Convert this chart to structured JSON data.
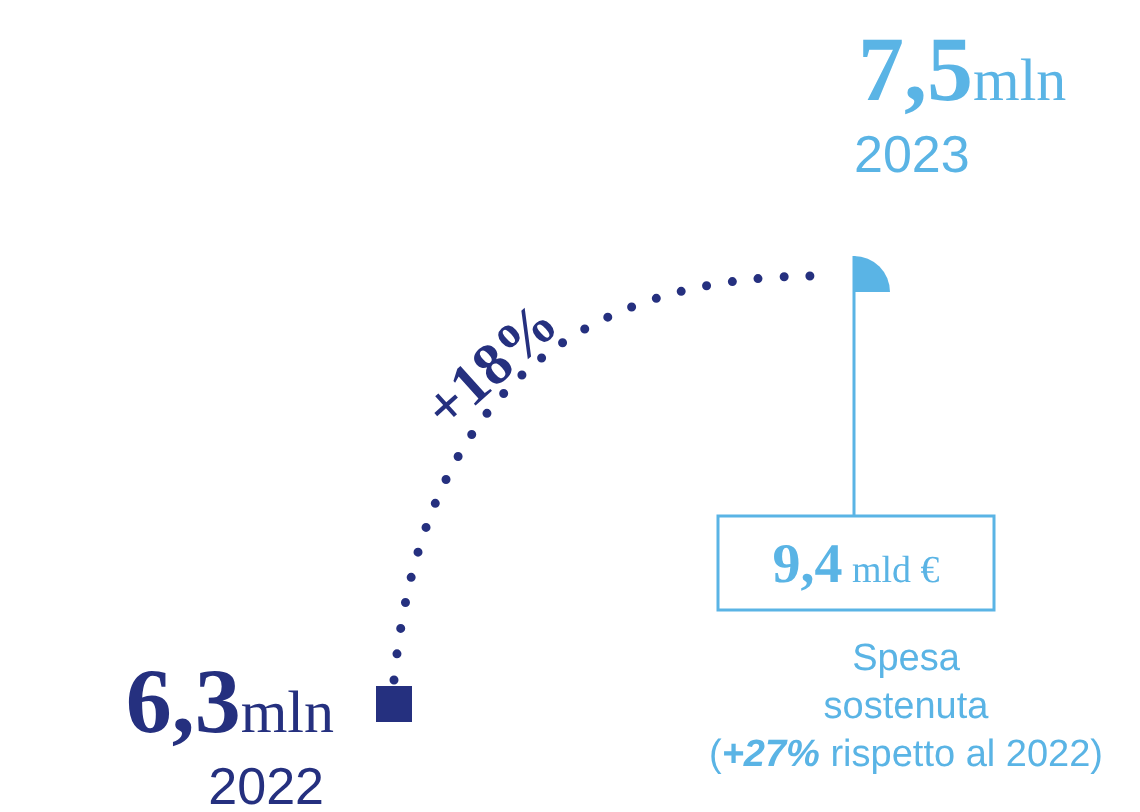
{
  "chart_data": {
    "type": "other",
    "categories": [
      "2022",
      "2023"
    ],
    "values": [
      6.3,
      7.5
    ],
    "value_labels": [
      "6,3",
      "7,5"
    ],
    "ylabel": "mln",
    "colors": [
      "#25307f",
      "#5ab4e5"
    ],
    "annotations": [
      "+18%",
      "9,4 mld €",
      "Spesa sostenuta (+27% rispetto al 2022)"
    ]
  }
}
